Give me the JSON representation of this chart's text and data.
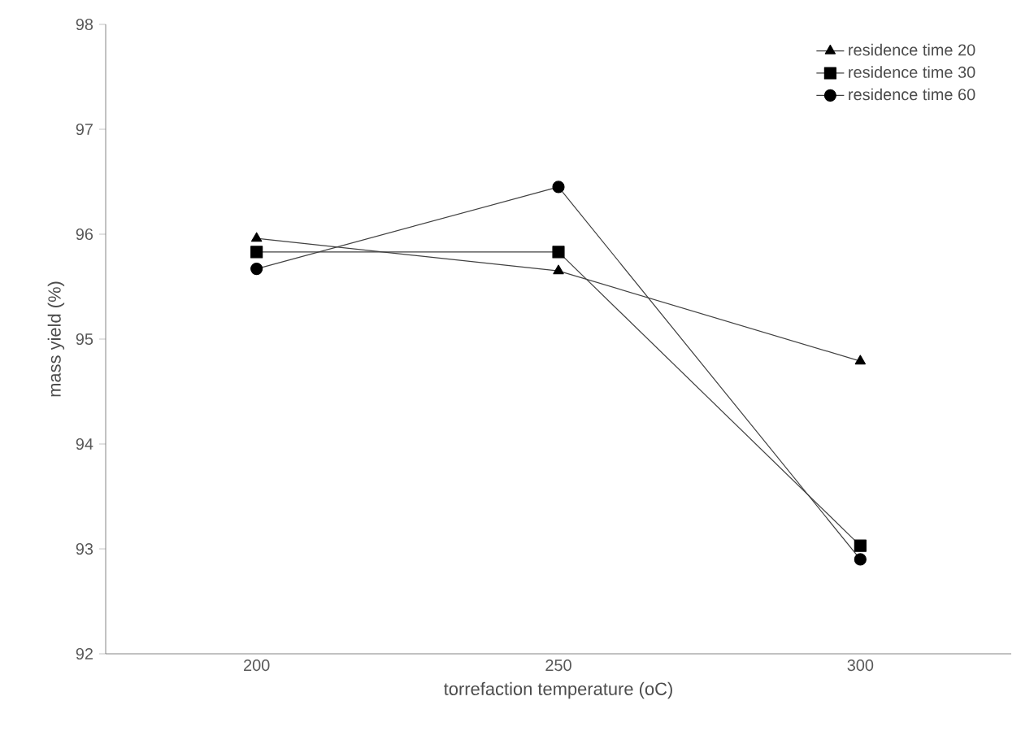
{
  "chart_data": {
    "type": "line",
    "xlabel": "torrefaction temperature (oC)",
    "ylabel": "mass yield (%)",
    "categories": [
      "200",
      "250",
      "300"
    ],
    "series": [
      {
        "name": "residence time 20",
        "color": "#000000",
        "marker": "triangle",
        "values": [
          95.96,
          95.65,
          94.79
        ]
      },
      {
        "name": "residence time 30",
        "color": "#000000",
        "marker": "square",
        "values": [
          95.83,
          95.83,
          93.03
        ]
      },
      {
        "name": "residence time 60",
        "color": "#000000",
        "marker": "circle",
        "values": [
          95.67,
          96.45,
          92.9
        ]
      }
    ],
    "ylim": [
      92,
      98
    ],
    "yticks": [
      92,
      93,
      94,
      95,
      96,
      97,
      98
    ],
    "grid": false,
    "legend": "top right",
    "line_style": "solid"
  }
}
